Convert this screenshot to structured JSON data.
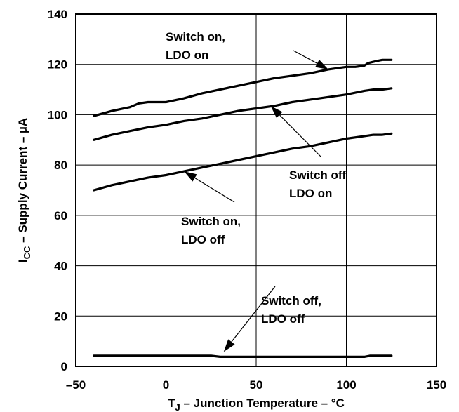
{
  "chart_data": {
    "type": "line",
    "title": "",
    "xlabel": {
      "main": "T",
      "sub": "J",
      "rest": " – Junction Temperature – °C"
    },
    "ylabel": {
      "main": "I",
      "sub": "CC",
      "rest": " – Supply Current – µA"
    },
    "xlim": [
      -50,
      150
    ],
    "ylim": [
      0,
      140
    ],
    "xticks": [
      -50,
      0,
      50,
      100,
      150
    ],
    "yticks": [
      0,
      20,
      40,
      60,
      80,
      100,
      120,
      140
    ],
    "xtick_labels": [
      "–50",
      "0",
      "50",
      "100",
      "150"
    ],
    "ytick_labels": [
      "0",
      "20",
      "40",
      "60",
      "80",
      "100",
      "120",
      "140"
    ],
    "grid": true,
    "series": [
      {
        "name": "Switch on, LDO on",
        "x": [
          -40,
          -30,
          -20,
          -15,
          -10,
          0,
          10,
          20,
          30,
          40,
          50,
          60,
          70,
          80,
          90,
          100,
          105,
          110,
          112,
          115,
          118,
          120,
          125
        ],
        "y": [
          99.5,
          101.5,
          103,
          104.5,
          105,
          105,
          106.5,
          108.5,
          110,
          111.5,
          113,
          114.5,
          115.5,
          116.5,
          118,
          119,
          119,
          119.5,
          120.5,
          121,
          121.5,
          121.8,
          121.8
        ]
      },
      {
        "name": "Switch off LDO on",
        "x": [
          -40,
          -30,
          -20,
          -10,
          0,
          10,
          20,
          30,
          40,
          50,
          60,
          70,
          80,
          90,
          100,
          110,
          115,
          120,
          125
        ],
        "y": [
          90,
          92,
          93.5,
          95,
          96,
          97.5,
          98.5,
          100,
          101.5,
          102.5,
          103.5,
          105,
          106,
          107,
          108,
          109.5,
          110,
          110,
          110.5
        ]
      },
      {
        "name": "Switch on, LDO off",
        "x": [
          -40,
          -30,
          -20,
          -10,
          0,
          10,
          20,
          30,
          40,
          50,
          60,
          70,
          80,
          90,
          100,
          110,
          115,
          120,
          125
        ],
        "y": [
          70,
          72,
          73.5,
          75,
          76,
          77.5,
          79,
          80.5,
          82,
          83.5,
          85,
          86.5,
          87.5,
          89,
          90.5,
          91.5,
          92,
          92,
          92.5
        ]
      },
      {
        "name": "Switch off, LDO off",
        "x": [
          -40,
          0,
          20,
          25,
          30,
          50,
          80,
          100,
          110,
          113,
          116,
          120,
          125
        ],
        "y": [
          4.2,
          4.2,
          4.2,
          4.2,
          3.8,
          3.8,
          3.8,
          3.8,
          3.8,
          4.2,
          4.2,
          4.2,
          4.2
        ]
      }
    ],
    "annotations": [
      {
        "lines": [
          "Switch on,",
          "LDO on"
        ],
        "arrow_to": [
          90,
          118
        ],
        "series": 0
      },
      {
        "lines": [
          "Switch off",
          "LDO on"
        ],
        "arrow_to": [
          58,
          103.5
        ],
        "series": 1
      },
      {
        "lines": [
          "Switch on,",
          "LDO off"
        ],
        "arrow_to": [
          10,
          77.5
        ],
        "series": 2
      },
      {
        "lines": [
          "Switch off,",
          "LDO off"
        ],
        "arrow_to": [
          32,
          5.8
        ],
        "series": 3
      }
    ]
  }
}
